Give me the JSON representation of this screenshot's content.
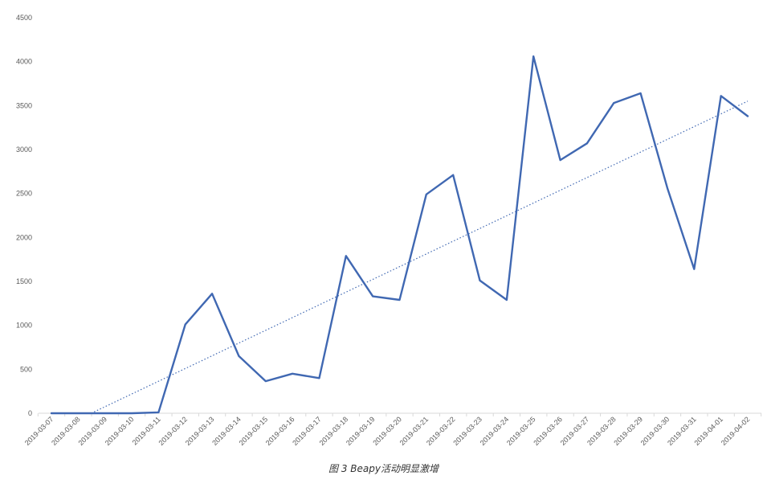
{
  "caption": "图 3 Beapy活动明显激增",
  "chart_data": {
    "type": "line",
    "title": "",
    "xlabel": "",
    "ylabel": "",
    "categories": [
      "2019-03-07",
      "2019-03-08",
      "2019-03-09",
      "2019-03-10",
      "2019-03-11",
      "2019-03-12",
      "2019-03-13",
      "2019-03-14",
      "2019-03-15",
      "2019-03-16",
      "2019-03-17",
      "2019-03-18",
      "2019-03-19",
      "2019-03-20",
      "2019-03-21",
      "2019-03-22",
      "2019-03-23",
      "2019-03-24",
      "2019-03-25",
      "2019-03-26",
      "2019-03-27",
      "2019-03-28",
      "2019-03-29",
      "2019-03-30",
      "2019-03-31",
      "2019-04-01",
      "2019-04-02"
    ],
    "series": [
      {
        "values": [
          0,
          0,
          0,
          0,
          10,
          1010,
          1360,
          650,
          365,
          450,
          400,
          1790,
          1330,
          1290,
          2490,
          2710,
          1510,
          1290,
          4060,
          2880,
          3070,
          3530,
          3640,
          2560,
          1640,
          3610,
          3380
        ],
        "color": "#4068B2"
      }
    ],
    "trendline": {
      "type": "linear",
      "style": "dotted",
      "color": "#4068B2"
    },
    "yticks": [
      0,
      500,
      1000,
      1500,
      2000,
      2500,
      3000,
      3500,
      4000,
      4500
    ],
    "ylim": [
      0,
      4500
    ],
    "grid": false
  }
}
